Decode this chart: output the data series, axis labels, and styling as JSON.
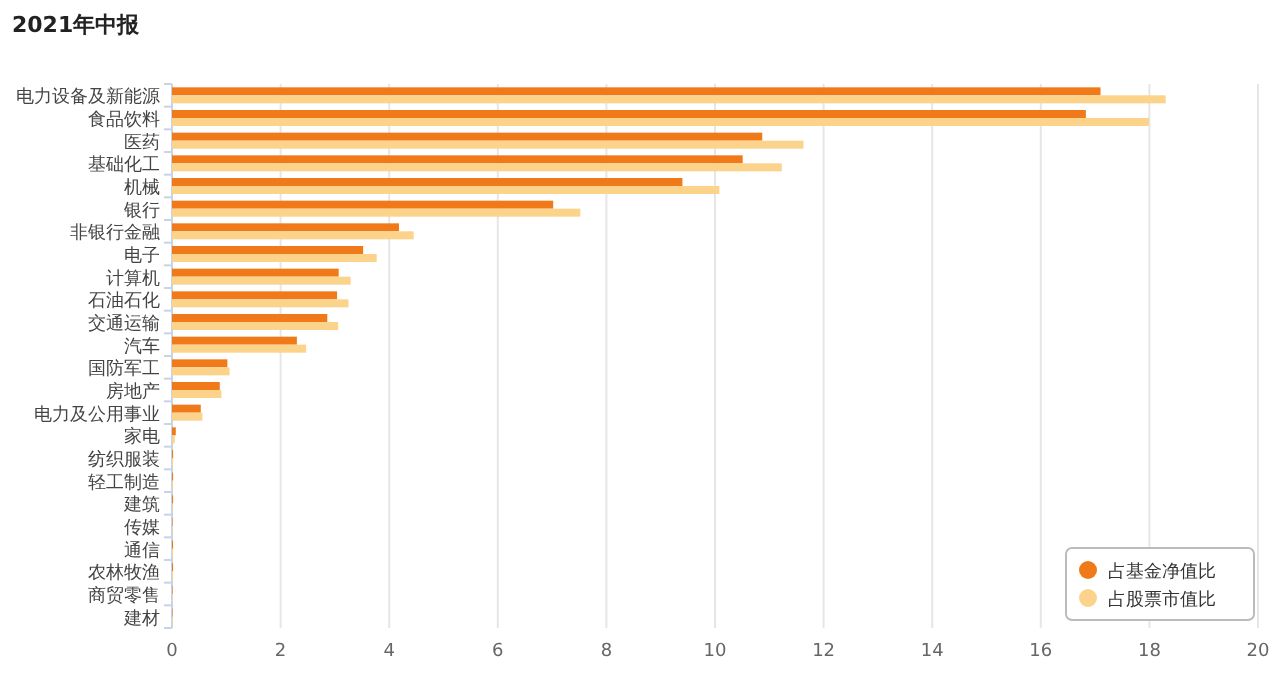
{
  "chart_data": {
    "type": "bar",
    "orientation": "horizontal",
    "title": "2021年中报",
    "categories": [
      "电力设备及新能源",
      "食品饮料",
      "医药",
      "基础化工",
      "机械",
      "银行",
      "非银行金融",
      "电子",
      "计算机",
      "石油石化",
      "交通运输",
      "汽车",
      "国防军工",
      "房地产",
      "电力及公用事业",
      "家电",
      "纺织服装",
      "轻工制造",
      "建筑",
      "传媒",
      "通信",
      "农林牧渔",
      "商贸零售",
      "建材"
    ],
    "series": [
      {
        "name": "占基金净值比",
        "color": "#f07a1a",
        "values": [
          17.1,
          16.83,
          10.87,
          10.51,
          9.4,
          7.02,
          4.18,
          3.52,
          3.07,
          3.04,
          2.86,
          2.3,
          1.02,
          0.88,
          0.53,
          0.07,
          0.02,
          0.02,
          0.02,
          0.01,
          0.02,
          0.02,
          0.01,
          0.01
        ]
      },
      {
        "name": "占股票市值比",
        "color": "#fbd38a",
        "values": [
          18.3,
          17.99,
          11.63,
          11.23,
          10.08,
          7.52,
          4.45,
          3.77,
          3.29,
          3.25,
          3.06,
          2.47,
          1.06,
          0.91,
          0.56,
          0.05,
          0.02,
          0.02,
          0.01,
          0.01,
          0.02,
          0.02,
          0.01,
          0.01
        ]
      }
    ],
    "xlim": [
      0,
      20
    ],
    "xticks": [
      0,
      2,
      4,
      6,
      8,
      10,
      12,
      14,
      16,
      18,
      20
    ],
    "grid": "x",
    "legend": "bottom right"
  }
}
